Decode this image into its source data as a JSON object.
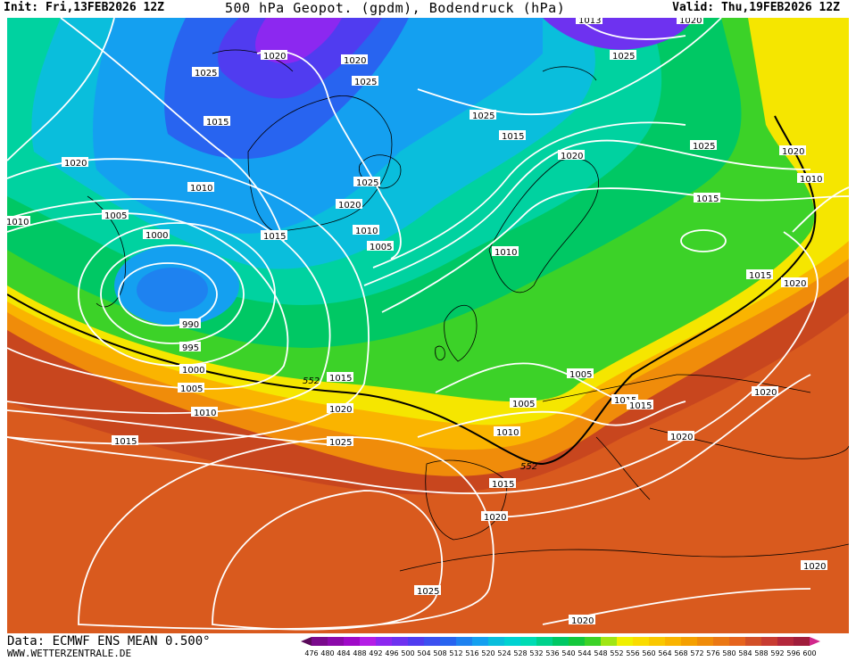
{
  "header": {
    "init": "Init: Fri,13FEB2026 12Z",
    "title": "500 hPa Geopot. (gpdm), Bodendruck (hPa)",
    "valid": "Valid: Thu,19FEB2026 12Z"
  },
  "footer": {
    "source": "Data: ECMWF ENS MEAN 0.500°",
    "site": "WWW.WETTERZENTRALE.DE"
  },
  "legend": {
    "values": [
      "476",
      "480",
      "484",
      "488",
      "492",
      "496",
      "500",
      "504",
      "508",
      "512",
      "516",
      "520",
      "524",
      "528",
      "532",
      "536",
      "540",
      "544",
      "548",
      "552",
      "556",
      "560",
      "564",
      "568",
      "572",
      "576",
      "580",
      "584",
      "588",
      "592",
      "596",
      "600"
    ],
    "colors": [
      "#5a0a5a",
      "#7a0a8c",
      "#8c0aaa",
      "#a00ac8",
      "#b41ee6",
      "#8c28f0",
      "#6e32f0",
      "#503cf0",
      "#3c50f0",
      "#2864f0",
      "#1e82f0",
      "#14a0f0",
      "#0abedc",
      "#00d2d2",
      "#00dcb4",
      "#00d28c",
      "#00c864",
      "#14c83c",
      "#3cd228",
      "#a0e614",
      "#f0f000",
      "#fadc00",
      "#fac800",
      "#fab400",
      "#f5a000",
      "#f08c0a",
      "#eb7814",
      "#e6641e",
      "#d25028",
      "#c83c32",
      "#b4283c",
      "#a01e3c",
      "#d2288c"
    ]
  },
  "labels": {
    "l1013": "1013",
    "l1020a": "1020",
    "l1020b": "1020",
    "l1020c": "1020",
    "l1025a": "1025",
    "l1025b": "1025",
    "l1025c": "1025",
    "l1025d": "1025",
    "l1015a": "1015",
    "l1015b": "1015",
    "l1025e": "1025",
    "l1020d": "1020",
    "l1020e": "1020",
    "l1010a": "1010",
    "l1010b": "1010",
    "l1015c": "1015",
    "l1005a": "1005",
    "l1000": "1000",
    "l1015d": "1015",
    "l1025f": "1025",
    "l1020f": "1020",
    "l1010c": "1010",
    "l1005b": "1005",
    "l1010d": "1010",
    "l1015e": "1015",
    "l1020g": "1020",
    "l990": "990",
    "l995": "995",
    "l1000b": "1000",
    "l1005c": "1005",
    "l1010e": "1010",
    "l552a": "552",
    "l1015f": "1015",
    "l1020h": "1020",
    "l1025g": "1025",
    "l1015g": "1015",
    "l1005d": "1005",
    "l1005e": "1005",
    "l1015h": "1015",
    "l1015i": "1015",
    "l1020i": "1020",
    "l1010f": "1010",
    "l552b": "552",
    "l1015j": "1015",
    "l1020j": "1020",
    "l1020k": "1020",
    "l1025h": "1025",
    "l1020l": "1020",
    "l1020m": "1020",
    "l1020n": "1020",
    "l1015k": "1015"
  }
}
